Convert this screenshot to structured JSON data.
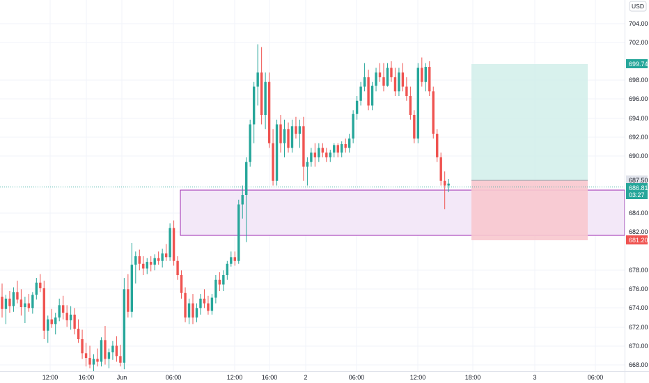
{
  "currency": "USD",
  "colors": {
    "up": "#26a69a",
    "down": "#ef5350",
    "target_fill": "#d1eeea",
    "stop_fill": "#f8c8ce",
    "zone_fill": "#f3e8f8",
    "zone_stroke": "#9c27b0",
    "current_line": "#26a69a",
    "grid": "#f0f3fa",
    "axis_text": "#131722"
  },
  "y_axis": {
    "ticks": [
      "704.00",
      "702.00",
      "698.00",
      "696.00",
      "694.00",
      "692.00",
      "690.00",
      "684.00",
      "682.00",
      "678.00",
      "676.00",
      "674.00",
      "672.00",
      "670.00",
      "668.00"
    ]
  },
  "x_axis": {
    "labels": [
      "12:00",
      "16:00",
      "Jun",
      "06:00",
      "12:00",
      "16:00",
      "2",
      "06:00",
      "12:00",
      "18:00",
      "3",
      "06:00"
    ]
  },
  "price_labels": {
    "target": "699.74",
    "entry": "687.50",
    "current": "686.81",
    "countdown": "03:27",
    "stop": "681.20"
  },
  "chart_data": {
    "type": "candlestick",
    "interval_minutes": 30,
    "y_range": [
      666.9,
      706.3
    ],
    "candles": [
      [
        674.8,
        676.2,
        672.6,
        673.5
      ],
      [
        673.5,
        675.0,
        671.9,
        674.6
      ],
      [
        674.6,
        675.4,
        673.1,
        673.8
      ],
      [
        673.8,
        675.8,
        673.2,
        675.3
      ],
      [
        675.3,
        676.5,
        674.1,
        674.5
      ],
      [
        674.5,
        675.6,
        672.8,
        673.7
      ],
      [
        673.7,
        674.8,
        672.0,
        674.1
      ],
      [
        674.1,
        675.1,
        673.2,
        673.6
      ],
      [
        673.6,
        675.3,
        673.0,
        675.0
      ],
      [
        675.0,
        676.8,
        674.5,
        676.3
      ],
      [
        676.3,
        677.2,
        675.3,
        675.7
      ],
      [
        675.7,
        676.5,
        670.3,
        671.2
      ],
      [
        671.2,
        672.8,
        669.9,
        672.4
      ],
      [
        672.4,
        673.5,
        671.5,
        671.9
      ],
      [
        671.9,
        673.1,
        670.8,
        672.6
      ],
      [
        672.6,
        674.6,
        672.2,
        673.9
      ],
      [
        673.9,
        674.9,
        672.4,
        673.1
      ],
      [
        673.1,
        673.9,
        671.6,
        672.3
      ],
      [
        672.3,
        673.8,
        671.3,
        672.9
      ],
      [
        672.9,
        673.6,
        670.8,
        671.4
      ],
      [
        671.4,
        672.4,
        669.9,
        670.3
      ],
      [
        670.3,
        671.3,
        668.2,
        668.8
      ],
      [
        668.8,
        669.9,
        667.4,
        668.3
      ],
      [
        668.3,
        669.6,
        667.2,
        667.6
      ],
      [
        667.6,
        668.7,
        666.9,
        668.2
      ],
      [
        668.2,
        669.3,
        667.4,
        667.9
      ],
      [
        667.9,
        670.5,
        667.4,
        670.2
      ],
      [
        670.2,
        671.7,
        667.6,
        668.2
      ],
      [
        668.2,
        669.3,
        667.2,
        668.9
      ],
      [
        668.9,
        670.1,
        668.1,
        669.6
      ],
      [
        669.6,
        670.6,
        667.9,
        668.5
      ],
      [
        668.5,
        669.7,
        667.4,
        667.8
      ],
      [
        667.8,
        676.8,
        667.1,
        675.6
      ],
      [
        675.6,
        677.2,
        672.6,
        673.2
      ],
      [
        673.2,
        680.5,
        672.6,
        678.2
      ],
      [
        678.2,
        679.6,
        676.2,
        679.1
      ],
      [
        679.1,
        679.8,
        677.6,
        678.3
      ],
      [
        678.3,
        679.1,
        677.1,
        677.8
      ],
      [
        677.8,
        678.9,
        677.2,
        678.5
      ],
      [
        678.5,
        679.1,
        677.5,
        678.2
      ],
      [
        678.2,
        679.3,
        677.6,
        678.9
      ],
      [
        678.9,
        679.6,
        678.2,
        678.6
      ],
      [
        678.6,
        679.9,
        677.9,
        679.4
      ],
      [
        679.4,
        680.4,
        678.6,
        679.0
      ],
      [
        679.0,
        682.6,
        678.6,
        682.1
      ],
      [
        682.1,
        682.9,
        678.1,
        678.6
      ],
      [
        678.6,
        679.1,
        676.6,
        677.1
      ],
      [
        677.1,
        677.6,
        674.6,
        675.2
      ],
      [
        675.2,
        675.8,
        672.1,
        672.6
      ],
      [
        672.6,
        674.6,
        671.9,
        674.1
      ],
      [
        674.1,
        675.1,
        671.9,
        672.6
      ],
      [
        672.6,
        674.1,
        672.1,
        673.6
      ],
      [
        673.6,
        675.1,
        672.9,
        674.6
      ],
      [
        674.6,
        675.6,
        673.6,
        674.1
      ],
      [
        674.1,
        674.9,
        672.9,
        673.3
      ],
      [
        673.3,
        675.1,
        672.9,
        674.7
      ],
      [
        674.7,
        677.1,
        674.1,
        676.6
      ],
      [
        676.6,
        677.4,
        675.4,
        676.1
      ],
      [
        676.1,
        677.6,
        675.4,
        677.1
      ],
      [
        677.1,
        678.6,
        676.6,
        678.3
      ],
      [
        678.3,
        679.6,
        678.0,
        679.0
      ],
      [
        679.0,
        679.6,
        678.1,
        678.6
      ],
      [
        678.6,
        685.1,
        678.3,
        684.6
      ],
      [
        684.6,
        686.6,
        683.1,
        685.6
      ],
      [
        685.6,
        689.6,
        680.6,
        689.1
      ],
      [
        689.1,
        693.6,
        688.6,
        693.1
      ],
      [
        693.1,
        697.6,
        691.1,
        697.1
      ],
      [
        697.1,
        701.6,
        695.1,
        698.6
      ],
      [
        698.6,
        701.3,
        693.1,
        694.1
      ],
      [
        694.1,
        698.6,
        692.6,
        697.6
      ],
      [
        697.6,
        698.6,
        690.6,
        691.1
      ],
      [
        691.1,
        692.6,
        686.6,
        687.1
      ],
      [
        687.1,
        693.6,
        686.6,
        693.1
      ],
      [
        693.1,
        694.1,
        690.1,
        691.1
      ],
      [
        691.1,
        693.6,
        689.6,
        692.6
      ],
      [
        692.6,
        693.3,
        690.1,
        690.6
      ],
      [
        690.6,
        693.6,
        690.1,
        692.9
      ],
      [
        692.9,
        693.9,
        691.6,
        692.1
      ],
      [
        692.1,
        693.6,
        690.6,
        692.9
      ],
      [
        692.9,
        693.9,
        687.1,
        688.6
      ],
      [
        688.6,
        689.6,
        686.6,
        689.1
      ],
      [
        689.1,
        690.6,
        688.6,
        690.1
      ],
      [
        690.1,
        691.1,
        688.6,
        689.6
      ],
      [
        689.6,
        691.1,
        689.1,
        690.6
      ],
      [
        690.6,
        691.1,
        689.6,
        690.1
      ],
      [
        690.1,
        690.6,
        689.1,
        689.6
      ],
      [
        689.6,
        690.4,
        689.1,
        690.1
      ],
      [
        690.1,
        691.1,
        689.6,
        690.9
      ],
      [
        690.9,
        691.1,
        689.6,
        690.1
      ],
      [
        690.1,
        691.3,
        689.6,
        691.0
      ],
      [
        691.0,
        691.6,
        690.1,
        690.6
      ],
      [
        690.6,
        692.1,
        690.1,
        691.6
      ],
      [
        691.6,
        694.6,
        691.1,
        694.2
      ],
      [
        694.2,
        696.1,
        693.6,
        695.6
      ],
      [
        695.6,
        697.6,
        695.1,
        697.1
      ],
      [
        697.1,
        699.6,
        696.6,
        698.1
      ],
      [
        698.1,
        698.9,
        694.6,
        695.1
      ],
      [
        695.1,
        697.6,
        694.6,
        697.2
      ],
      [
        697.2,
        699.1,
        696.6,
        698.6
      ],
      [
        698.6,
        699.6,
        697.6,
        698.1
      ],
      [
        698.1,
        699.6,
        696.6,
        697.2
      ],
      [
        697.2,
        699.6,
        697.1,
        699.1
      ],
      [
        699.1,
        699.8,
        697.6,
        698.1
      ],
      [
        698.1,
        699.1,
        696.1,
        696.6
      ],
      [
        696.6,
        699.1,
        696.1,
        698.6
      ],
      [
        698.6,
        699.6,
        696.6,
        697.1
      ],
      [
        697.1,
        698.1,
        695.6,
        696.1
      ],
      [
        696.1,
        697.1,
        693.6,
        694.1
      ],
      [
        694.1,
        694.6,
        691.1,
        691.6
      ],
      [
        691.6,
        699.6,
        691.1,
        699.1
      ],
      [
        699.1,
        700.2,
        697.1,
        697.6
      ],
      [
        697.6,
        699.6,
        696.6,
        699.2
      ],
      [
        699.2,
        699.8,
        696.1,
        696.6
      ],
      [
        696.6,
        697.1,
        691.6,
        692.1
      ],
      [
        692.1,
        692.6,
        689.1,
        689.6
      ],
      [
        689.6,
        690.1,
        686.6,
        687.1
      ],
      [
        687.1,
        688.1,
        684.1,
        686.6
      ],
      [
        686.6,
        687.3,
        685.9,
        686.81
      ]
    ]
  }
}
